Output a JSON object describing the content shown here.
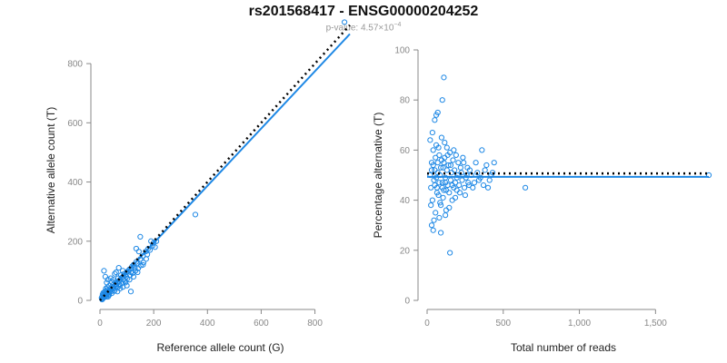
{
  "header": {
    "title": "rs201568417 - ENSG00000204252",
    "pvalue_label": "p-value: 4.57×10",
    "pvalue_exponent": "−4"
  },
  "colors": {
    "points": "#1e88e5",
    "fit": "#1e88e5",
    "expected": "#000000",
    "axis": "#888888"
  },
  "chart_data": [
    {
      "type": "scatter",
      "xlabel": "Reference allele count (G)",
      "ylabel": "Alternative allele count (T)",
      "xlim": [
        0,
        930
      ],
      "ylim": [
        0,
        880
      ],
      "x_ticks": [
        0,
        200,
        400,
        600,
        800
      ],
      "y_ticks": [
        0,
        200,
        400,
        600,
        800
      ],
      "x_tick_labels": [
        "0",
        "200",
        "400",
        "600",
        "800"
      ],
      "y_tick_labels": [
        "0",
        "200",
        "400",
        "600",
        "800"
      ],
      "expected_line": {
        "x": [
          0,
          930
        ],
        "y": [
          0,
          930
        ]
      },
      "fit_line": {
        "x": [
          0,
          930
        ],
        "y": [
          0,
          900
        ]
      },
      "points": [
        [
          10,
          5
        ],
        [
          12,
          8
        ],
        [
          15,
          10
        ],
        [
          8,
          12
        ],
        [
          18,
          14
        ],
        [
          20,
          20
        ],
        [
          22,
          15
        ],
        [
          25,
          22
        ],
        [
          14,
          18
        ],
        [
          30,
          25
        ],
        [
          28,
          30
        ],
        [
          35,
          28
        ],
        [
          32,
          20
        ],
        [
          40,
          35
        ],
        [
          38,
          40
        ],
        [
          45,
          38
        ],
        [
          42,
          30
        ],
        [
          50,
          45
        ],
        [
          48,
          52
        ],
        [
          55,
          50
        ],
        [
          52,
          40
        ],
        [
          60,
          55
        ],
        [
          58,
          62
        ],
        [
          65,
          60
        ],
        [
          62,
          48
        ],
        [
          70,
          65
        ],
        [
          68,
          75
        ],
        [
          75,
          70
        ],
        [
          72,
          55
        ],
        [
          80,
          75
        ],
        [
          78,
          85
        ],
        [
          85,
          80
        ],
        [
          88,
          70
        ],
        [
          90,
          90
        ],
        [
          95,
          85
        ],
        [
          100,
          95
        ],
        [
          98,
          80
        ],
        [
          105,
          100
        ],
        [
          110,
          105
        ],
        [
          115,
          95
        ],
        [
          120,
          115
        ],
        [
          125,
          120
        ],
        [
          130,
          110
        ],
        [
          135,
          130
        ],
        [
          140,
          125
        ],
        [
          150,
          140
        ],
        [
          160,
          150
        ],
        [
          170,
          165
        ],
        [
          180,
          175
        ],
        [
          200,
          195
        ],
        [
          205,
          180
        ],
        [
          190,
          200
        ],
        [
          145,
          165
        ],
        [
          135,
          175
        ],
        [
          150,
          215
        ],
        [
          15,
          100
        ],
        [
          20,
          80
        ],
        [
          25,
          60
        ],
        [
          30,
          70
        ],
        [
          40,
          75
        ],
        [
          55,
          90
        ],
        [
          70,
          110
        ],
        [
          85,
          100
        ],
        [
          60,
          95
        ],
        [
          50,
          70
        ],
        [
          45,
          62
        ],
        [
          35,
          50
        ],
        [
          28,
          45
        ],
        [
          22,
          40
        ],
        [
          18,
          30
        ],
        [
          65,
          30
        ],
        [
          85,
          45
        ],
        [
          95,
          60
        ],
        [
          110,
          70
        ],
        [
          125,
          80
        ],
        [
          75,
          40
        ],
        [
          115,
          30
        ],
        [
          100,
          50
        ],
        [
          140,
          95
        ],
        [
          160,
          120
        ],
        [
          10,
          20
        ],
        [
          12,
          25
        ],
        [
          16,
          22
        ],
        [
          24,
          12
        ],
        [
          26,
          35
        ],
        [
          34,
          18
        ],
        [
          44,
          24
        ],
        [
          54,
          32
        ],
        [
          64,
          42
        ],
        [
          74,
          50
        ],
        [
          82,
          58
        ],
        [
          92,
          66
        ],
        [
          102,
          74
        ],
        [
          112,
          85
        ],
        [
          122,
          92
        ],
        [
          132,
          100
        ],
        [
          142,
          108
        ],
        [
          152,
          118
        ],
        [
          162,
          128
        ],
        [
          172,
          140
        ],
        [
          176,
          155
        ],
        [
          186,
          170
        ],
        [
          196,
          185
        ],
        [
          210,
          200
        ],
        [
          355,
          290
        ],
        [
          910,
          940
        ],
        [
          8,
          3
        ],
        [
          6,
          8
        ],
        [
          30,
          12
        ],
        [
          36,
          32
        ]
      ]
    },
    {
      "type": "scatter",
      "xlabel": "Total number of reads",
      "ylabel": "Percentage alternative (T)",
      "xlim": [
        0,
        1850
      ],
      "ylim": [
        0,
        100
      ],
      "x_ticks": [
        0,
        500,
        1000,
        1500
      ],
      "y_ticks": [
        0,
        20,
        40,
        60,
        80,
        100
      ],
      "x_tick_labels": [
        "0",
        "500",
        "1,000",
        "1,500"
      ],
      "y_tick_labels": [
        "0",
        "20",
        "40",
        "60",
        "80",
        "100"
      ],
      "expected_line": {
        "x": [
          0,
          1850
        ],
        "y": [
          50.7,
          50.7
        ]
      },
      "fit_line": {
        "x": [
          0,
          1850
        ],
        "y": [
          49.3,
          49.3
        ]
      },
      "points": [
        [
          20,
          50
        ],
        [
          25,
          45
        ],
        [
          30,
          55
        ],
        [
          35,
          40
        ],
        [
          40,
          60
        ],
        [
          45,
          48
        ],
        [
          50,
          52
        ],
        [
          55,
          35
        ],
        [
          60,
          62
        ],
        [
          65,
          45
        ],
        [
          70,
          55
        ],
        [
          75,
          42
        ],
        [
          80,
          58
        ],
        [
          85,
          50
        ],
        [
          90,
          38
        ],
        [
          95,
          65
        ],
        [
          100,
          47
        ],
        [
          105,
          53
        ],
        [
          110,
          44
        ],
        [
          115,
          57
        ],
        [
          120,
          49
        ],
        [
          125,
          36
        ],
        [
          130,
          61
        ],
        [
          135,
          46
        ],
        [
          140,
          54
        ],
        [
          145,
          43
        ],
        [
          150,
          59
        ],
        [
          155,
          48
        ],
        [
          160,
          51
        ],
        [
          165,
          40
        ],
        [
          170,
          56
        ],
        [
          175,
          45
        ],
        [
          180,
          52
        ],
        [
          185,
          47
        ],
        [
          190,
          58
        ],
        [
          195,
          44
        ],
        [
          200,
          50
        ],
        [
          210,
          46
        ],
        [
          220,
          53
        ],
        [
          230,
          48
        ],
        [
          240,
          55
        ],
        [
          250,
          42
        ],
        [
          260,
          50
        ],
        [
          270,
          47
        ],
        [
          280,
          52
        ],
        [
          300,
          45
        ],
        [
          320,
          55
        ],
        [
          340,
          48
        ],
        [
          360,
          60
        ],
        [
          380,
          52
        ],
        [
          400,
          45
        ],
        [
          420,
          50
        ],
        [
          440,
          55
        ],
        [
          30,
          30
        ],
        [
          40,
          28
        ],
        [
          50,
          72
        ],
        [
          60,
          74
        ],
        [
          70,
          75
        ],
        [
          80,
          33
        ],
        [
          90,
          27
        ],
        [
          100,
          80
        ],
        [
          110,
          89
        ],
        [
          120,
          34
        ],
        [
          150,
          19
        ],
        [
          20,
          64
        ],
        [
          25,
          38
        ],
        [
          35,
          67
        ],
        [
          45,
          32
        ],
        [
          55,
          57
        ],
        [
          65,
          43
        ],
        [
          75,
          61
        ],
        [
          85,
          39
        ],
        [
          95,
          56
        ],
        [
          105,
          41
        ],
        [
          115,
          63
        ],
        [
          125,
          44
        ],
        [
          135,
          58
        ],
        [
          145,
          37
        ],
        [
          155,
          54
        ],
        [
          165,
          46
        ],
        [
          175,
          60
        ],
        [
          185,
          41
        ],
        [
          195,
          49
        ],
        [
          205,
          55
        ],
        [
          215,
          43
        ],
        [
          225,
          51
        ],
        [
          235,
          57
        ],
        [
          245,
          45
        ],
        [
          255,
          49
        ],
        [
          265,
          53
        ],
        [
          275,
          46
        ],
        [
          290,
          50
        ],
        [
          310,
          47
        ],
        [
          330,
          51
        ],
        [
          350,
          49
        ],
        [
          370,
          46
        ],
        [
          390,
          54
        ],
        [
          410,
          48
        ],
        [
          430,
          51
        ],
        [
          30,
          52
        ],
        [
          40,
          54
        ],
        [
          50,
          46
        ],
        [
          60,
          49
        ],
        [
          70,
          51
        ],
        [
          80,
          47
        ],
        [
          90,
          53
        ],
        [
          100,
          45
        ],
        [
          110,
          55
        ],
        [
          120,
          47
        ],
        [
          130,
          52
        ],
        [
          645,
          45
        ],
        [
          1850,
          50
        ]
      ]
    }
  ]
}
